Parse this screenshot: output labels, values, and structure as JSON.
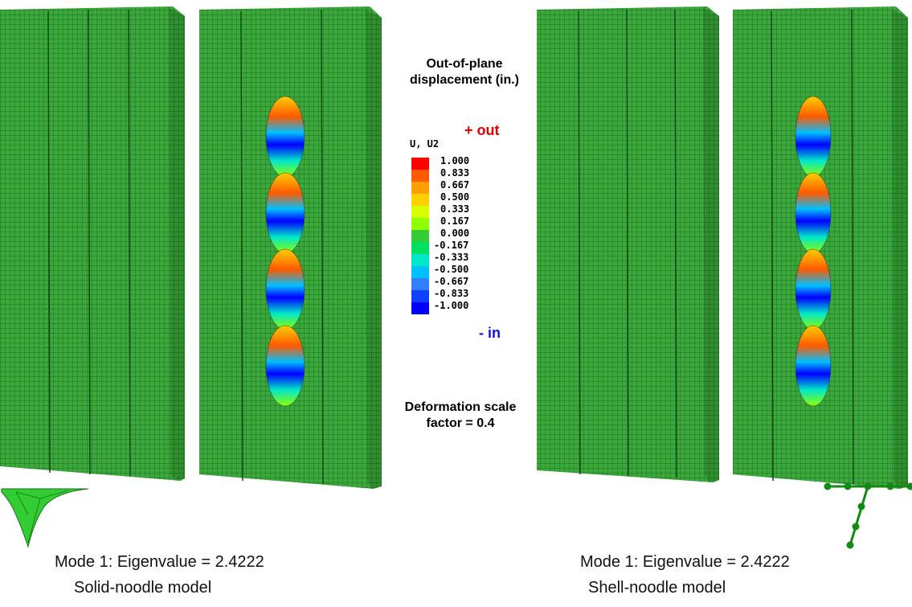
{
  "legend": {
    "title_line1": "Out-of-plane",
    "title_line2": "displacement (in.)",
    "variable": "U, U2",
    "out_label": "+ out",
    "in_label": "- in",
    "ticks": [
      "1.000",
      "0.833",
      "0.667",
      "0.500",
      "0.333",
      "0.167",
      "0.000",
      "-0.167",
      "-0.333",
      "-0.500",
      "-0.667",
      "-0.833",
      "-1.000"
    ],
    "colors": [
      "#ff0000",
      "#ff5a00",
      "#ffa000",
      "#ffd000",
      "#d8ff00",
      "#90ff00",
      "#33cc33",
      "#00e060",
      "#00e8c8",
      "#00c0ff",
      "#2f7fff",
      "#0f3fff",
      "#0000ff"
    ]
  },
  "scale_note": {
    "line1": "Deformation scale",
    "line2": "factor = 0.4"
  },
  "left_model": {
    "caption_line1": "Mode 1: Eigenvalue = 2.4222",
    "caption_line2": "Solid-noodle model"
  },
  "right_model": {
    "caption_line1": "Mode 1: Eigenvalue = 2.4222",
    "caption_line2": "Shell-noodle model"
  },
  "colors": {
    "mesh_green": "#3aa83a",
    "mesh_line": "#1a5a1a",
    "out_red": "#e00000",
    "in_blue": "#1010e0"
  }
}
